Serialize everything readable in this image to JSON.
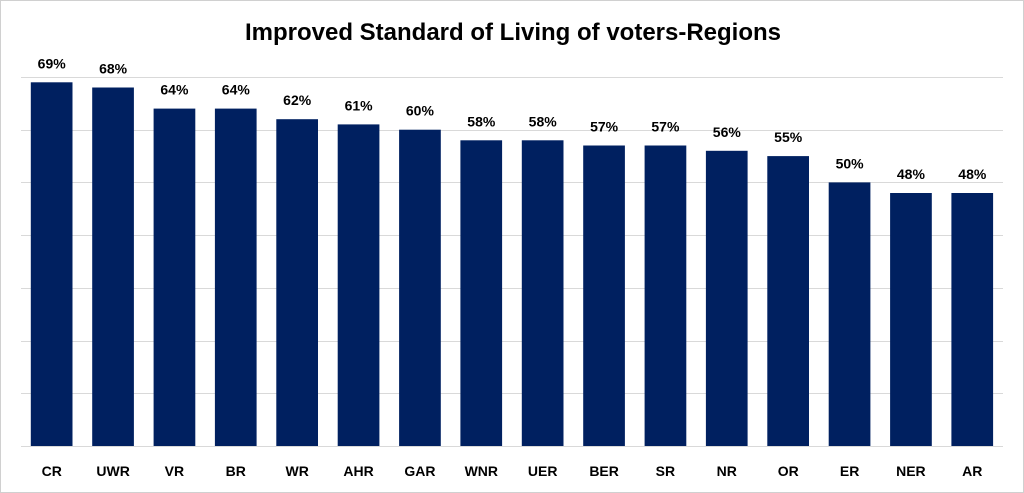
{
  "chart_data": {
    "type": "bar",
    "title": "Improved Standard of Living of voters-Regions",
    "xlabel": "",
    "ylabel": "",
    "categories": [
      "CR",
      "UWR",
      "VR",
      "BR",
      "WR",
      "AHR",
      "GAR",
      "WNR",
      "UER",
      "BER",
      "SR",
      "NR",
      "OR",
      "ER",
      "NER",
      "AR"
    ],
    "values": [
      69,
      68,
      64,
      64,
      62,
      61,
      60,
      58,
      58,
      57,
      57,
      56,
      55,
      50,
      48,
      48
    ],
    "value_labels": [
      "69%",
      "68%",
      "64%",
      "64%",
      "62%",
      "61%",
      "60%",
      "58%",
      "58%",
      "57%",
      "57%",
      "56%",
      "55%",
      "50%",
      "48%",
      "48%"
    ],
    "ylim": [
      0,
      70
    ],
    "grid": true,
    "legend": "none",
    "bar_color": "#002060",
    "grid_color": "#d9d9d9"
  }
}
